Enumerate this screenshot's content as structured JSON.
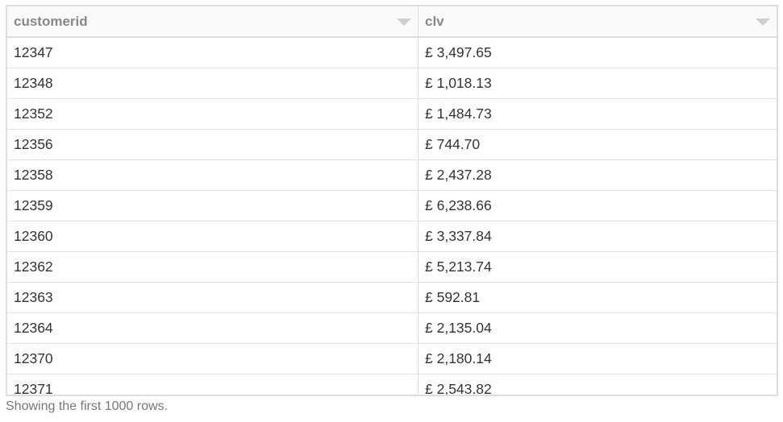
{
  "table": {
    "columns": [
      {
        "label": "customerid",
        "icon": "sort-dropdown-icon"
      },
      {
        "label": "clv",
        "icon": "sort-dropdown-icon"
      }
    ],
    "rows": [
      [
        "12347",
        "£ 3,497.65"
      ],
      [
        "12348",
        "£ 1,018.13"
      ],
      [
        "12352",
        "£ 1,484.73"
      ],
      [
        "12356",
        "£ 744.70"
      ],
      [
        "12358",
        "£ 2,437.28"
      ],
      [
        "12359",
        "£ 6,238.66"
      ],
      [
        "12360",
        "£ 3,337.84"
      ],
      [
        "12362",
        "£ 5,213.74"
      ],
      [
        "12363",
        "£ 592.81"
      ],
      [
        "12364",
        "£ 2,135.04"
      ],
      [
        "12370",
        "£ 2,180.14"
      ],
      [
        "12371",
        "£ 2,543.82"
      ]
    ]
  },
  "footer": {
    "text": "Showing the first 1000 rows."
  }
}
